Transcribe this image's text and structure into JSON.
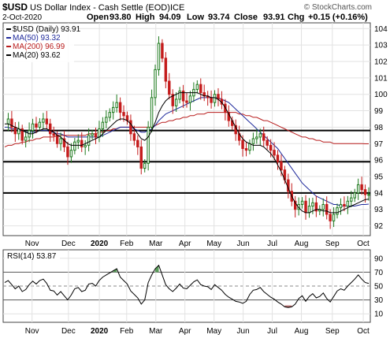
{
  "header": {
    "symbol": "$USD",
    "name": "US Dollar Index - Cash Settle (EOD)",
    "exchange": "ICE",
    "date": "2-Oct-2020",
    "open_label": "Open",
    "open": "93.80",
    "high_label": "High",
    "high": "94.09",
    "low_label": "Low",
    "low": "93.74",
    "close_label": "Close",
    "close": "93.91",
    "chg_label": "Chg",
    "chg": "+0.15 (+0.16%)",
    "watermark": "© StockCharts.com"
  },
  "legend": [
    {
      "label": "$USD (Daily) 93.91",
      "color": "#000000"
    },
    {
      "label": "MA(50) 93.32",
      "color": "#1f2a9c"
    },
    {
      "label": "MA(200) 96.99",
      "color": "#b81c1c"
    },
    {
      "label": "MA(20) 93.62",
      "color": "#000000"
    }
  ],
  "rsi": {
    "label": "RSI(14) 53.87",
    "ticks": [
      "90",
      "70",
      "50",
      "30",
      "10"
    ]
  },
  "colors": {
    "up": "#1e7a1e",
    "down": "#c41c1c",
    "ma50": "#1f2a9c",
    "ma200": "#b81c1c",
    "ma20": "#000000",
    "rsi_over": "#5a9c5a",
    "rsi_under": "#b06a6a"
  },
  "chart_data": {
    "type": "candlestick",
    "x_labels": [
      "Nov",
      "Dec",
      "2020",
      "Feb",
      "Mar",
      "Apr",
      "May",
      "Jun",
      "Jul",
      "Aug",
      "Sep",
      "Oct"
    ],
    "y_ticks": [
      "104",
      "103",
      "102",
      "101",
      "100",
      "99",
      "98",
      "97",
      "96",
      "95",
      "94",
      "93",
      "92"
    ],
    "ylim": [
      91.5,
      104.3
    ],
    "horizontal_lines": [
      97.8,
      95.9,
      94.0
    ],
    "close_series": [
      98.2,
      98.5,
      98.0,
      97.6,
      97.9,
      97.2,
      97.4,
      97.8,
      98.2,
      98.0,
      98.3,
      98.5,
      98.2,
      97.6,
      97.5,
      97.0,
      97.3,
      96.8,
      96.2,
      96.6,
      97.1,
      97.2,
      96.8,
      96.9,
      97.5,
      97.6,
      97.4,
      97.9,
      98.3,
      98.6,
      98.9,
      99.2,
      99.5,
      98.9,
      98.7,
      98.4,
      97.6,
      97.2,
      96.8,
      95.5,
      95.8,
      98.0,
      99.8,
      101.5,
      103.1,
      102.2,
      100.8,
      100.0,
      99.3,
      99.7,
      100.2,
      99.6,
      99.5,
      99.9,
      100.3,
      100.6,
      100.1,
      99.9,
      99.8,
      99.5,
      100.0,
      99.7,
      99.4,
      98.9,
      98.4,
      98.1,
      97.6,
      97.2,
      96.7,
      96.6,
      97.0,
      97.3,
      97.4,
      97.6,
      97.2,
      96.9,
      96.6,
      96.3,
      95.9,
      95.4,
      94.8,
      94.1,
      93.5,
      93.0,
      93.3,
      93.5,
      92.8,
      93.2,
      93.4,
      92.9,
      93.0,
      93.3,
      92.7,
      92.3,
      92.7,
      93.1,
      93.3,
      93.2,
      93.5,
      93.7,
      94.0,
      94.5,
      94.2,
      93.9,
      93.91
    ],
    "ma50_series": [
      98.0,
      98.0,
      97.9,
      97.9,
      97.8,
      97.8,
      97.7,
      97.7,
      97.7,
      97.7,
      97.8,
      97.8,
      97.8,
      97.7,
      97.7,
      97.6,
      97.6,
      97.5,
      97.4,
      97.4,
      97.4,
      97.4,
      97.4,
      97.4,
      97.4,
      97.4,
      97.4,
      97.4,
      97.5,
      97.6,
      97.7,
      97.8,
      97.9,
      98.0,
      98.0,
      98.0,
      98.0,
      97.9,
      97.8,
      97.7,
      97.7,
      97.8,
      97.9,
      98.1,
      98.4,
      98.6,
      98.8,
      98.9,
      99.0,
      99.1,
      99.2,
      99.3,
      99.4,
      99.5,
      99.6,
      99.7,
      99.8,
      99.8,
      99.8,
      99.8,
      99.8,
      99.8,
      99.7,
      99.6,
      99.5,
      99.3,
      99.1,
      98.9,
      98.7,
      98.5,
      98.3,
      98.1,
      97.9,
      97.7,
      97.5,
      97.3,
      97.1,
      96.9,
      96.7,
      96.4,
      96.1,
      95.8,
      95.5,
      95.2,
      94.9,
      94.6,
      94.4,
      94.2,
      94.0,
      93.8,
      93.7,
      93.6,
      93.5,
      93.4,
      93.3,
      93.3,
      93.2,
      93.2,
      93.2,
      93.2,
      93.2,
      93.25,
      93.3,
      93.3,
      93.32
    ],
    "ma200_series": [
      96.8,
      96.9,
      96.9,
      97.0,
      97.0,
      97.1,
      97.1,
      97.2,
      97.2,
      97.3,
      97.3,
      97.4,
      97.4,
      97.4,
      97.4,
      97.5,
      97.5,
      97.5,
      97.5,
      97.5,
      97.5,
      97.5,
      97.5,
      97.5,
      97.6,
      97.6,
      97.6,
      97.7,
      97.7,
      97.8,
      97.8,
      97.9,
      97.9,
      98.0,
      98.0,
      98.0,
      98.0,
      98.0,
      98.0,
      98.0,
      98.0,
      98.0,
      98.0,
      98.1,
      98.2,
      98.3,
      98.3,
      98.4,
      98.4,
      98.5,
      98.5,
      98.6,
      98.6,
      98.7,
      98.7,
      98.8,
      98.8,
      98.8,
      98.9,
      98.9,
      98.9,
      98.9,
      98.9,
      98.9,
      98.9,
      98.9,
      98.9,
      98.8,
      98.8,
      98.7,
      98.7,
      98.6,
      98.6,
      98.5,
      98.4,
      98.4,
      98.3,
      98.2,
      98.1,
      98.0,
      97.9,
      97.8,
      97.7,
      97.6,
      97.5,
      97.4,
      97.4,
      97.3,
      97.3,
      97.2,
      97.2,
      97.1,
      97.1,
      97.1,
      97.0,
      97.0,
      97.0,
      97.0,
      97.0,
      97.0,
      97.0,
      97.0,
      97.0,
      96.99,
      96.99
    ],
    "ma20_series": [
      98.2,
      98.2,
      98.1,
      98.0,
      97.9,
      97.8,
      97.7,
      97.6,
      97.6,
      97.7,
      97.8,
      97.9,
      97.9,
      97.8,
      97.7,
      97.5,
      97.4,
      97.2,
      97.0,
      96.9,
      96.9,
      96.9,
      96.9,
      97.0,
      97.1,
      97.2,
      97.3,
      97.4,
      97.6,
      97.8,
      98.0,
      98.2,
      98.4,
      98.5,
      98.5,
      98.4,
      98.2,
      97.9,
      97.6,
      97.3,
      97.2,
      97.4,
      97.8,
      98.3,
      98.9,
      99.3,
      99.6,
      99.8,
      99.9,
      100.0,
      100.1,
      100.1,
      100.1,
      100.1,
      100.1,
      100.1,
      100.0,
      99.9,
      99.9,
      99.8,
      99.8,
      99.7,
      99.5,
      99.2,
      98.8,
      98.4,
      98.0,
      97.6,
      97.3,
      97.1,
      97.0,
      96.9,
      96.9,
      96.9,
      96.8,
      96.6,
      96.4,
      96.1,
      95.7,
      95.3,
      94.8,
      94.3,
      93.8,
      93.4,
      93.1,
      92.9,
      92.8,
      92.8,
      92.9,
      93.0,
      93.0,
      92.9,
      92.9,
      92.8,
      92.8,
      92.8,
      92.9,
      93.0,
      93.1,
      93.2,
      93.3,
      93.4,
      93.5,
      93.6,
      93.62
    ],
    "rsi_series": [
      55,
      58,
      52,
      46,
      50,
      42,
      45,
      52,
      57,
      53,
      58,
      60,
      54,
      44,
      43,
      37,
      42,
      36,
      30,
      37,
      46,
      48,
      42,
      44,
      53,
      54,
      50,
      58,
      63,
      66,
      69,
      72,
      75,
      63,
      58,
      53,
      43,
      38,
      33,
      24,
      30,
      55,
      66,
      75,
      80,
      66,
      52,
      46,
      42,
      47,
      53,
      47,
      46,
      51,
      56,
      59,
      52,
      50,
      49,
      45,
      52,
      48,
      44,
      38,
      34,
      31,
      28,
      27,
      25,
      28,
      38,
      44,
      45,
      48,
      42,
      38,
      34,
      31,
      27,
      24,
      20,
      19,
      20,
      24,
      32,
      36,
      28,
      35,
      39,
      33,
      35,
      40,
      32,
      27,
      35,
      43,
      46,
      44,
      50,
      55,
      60,
      66,
      60,
      55,
      53.87
    ]
  }
}
